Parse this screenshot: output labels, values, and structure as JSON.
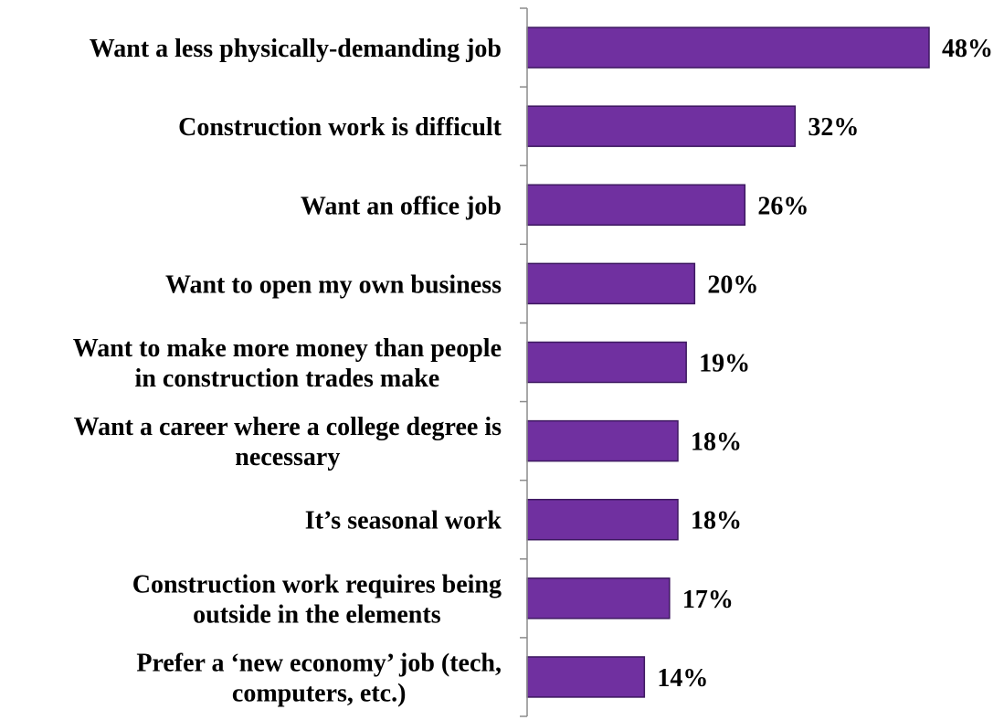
{
  "chart_data": {
    "type": "bar",
    "orientation": "horizontal",
    "title": "",
    "xlabel": "",
    "ylabel": "",
    "xlim": [
      0,
      48
    ],
    "grid": false,
    "legend": "none",
    "bar_color": "#7030a0",
    "categories": [
      [
        "Want a less physically-demanding job"
      ],
      [
        "Construction work is difficult"
      ],
      [
        "Want an office job"
      ],
      [
        "Want to open my own business"
      ],
      [
        "Want to make more money than people",
        "in construction trades make"
      ],
      [
        "Want a career where a college degree is",
        "necessary"
      ],
      [
        "It’s seasonal work"
      ],
      [
        "Construction work requires being",
        "outside in the elements"
      ],
      [
        "Prefer a ‘new economy’ job (tech,",
        "computers, etc.)"
      ]
    ],
    "values": [
      48,
      32,
      26,
      20,
      19,
      18,
      18,
      17,
      14
    ],
    "value_labels": [
      "48%",
      "32%",
      "26%",
      "20%",
      "19%",
      "18%",
      "18%",
      "17%",
      "14%"
    ]
  }
}
